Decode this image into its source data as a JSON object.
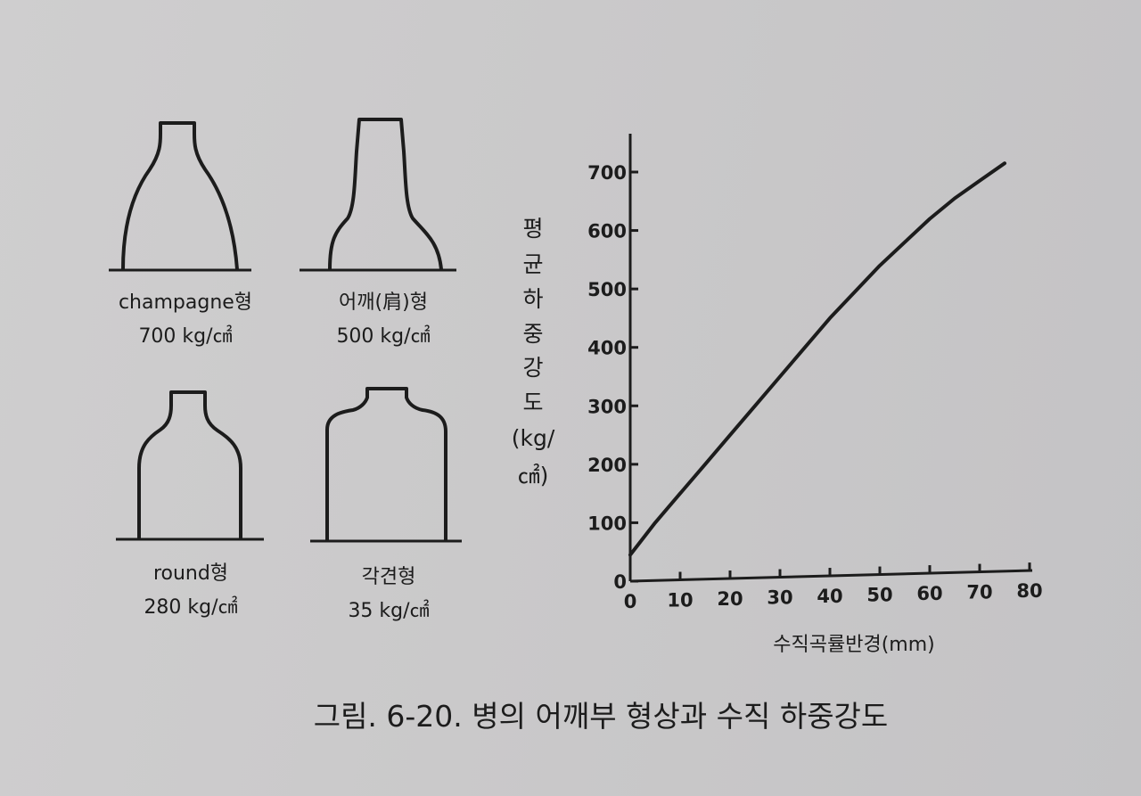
{
  "bottles": [
    {
      "name": "champagne형",
      "strength": "700 kg/㎠"
    },
    {
      "name": "어깨(肩)형",
      "strength": "500 kg/㎠"
    },
    {
      "name": "round형",
      "strength": "280 kg/㎠"
    },
    {
      "name": "각견형",
      "strength": "35 kg/㎠"
    }
  ],
  "chart_data": {
    "type": "line",
    "ylabel_chars": [
      "평",
      "균",
      "하",
      "중",
      "강",
      "도",
      "(kg/",
      "㎠)"
    ],
    "xlabel": "수직곡률반경(mm)",
    "xlim": [
      0,
      80
    ],
    "ylim": [
      0,
      700
    ],
    "xticks": [
      0,
      10,
      20,
      30,
      40,
      50,
      60,
      70,
      80
    ],
    "yticks": [
      0,
      100,
      200,
      300,
      400,
      500,
      600,
      700
    ],
    "series": [
      {
        "x": [
          0,
          5,
          10,
          15,
          20,
          25,
          30,
          35,
          40,
          45,
          50,
          55,
          60,
          65,
          70,
          75
        ],
        "y": [
          45,
          100,
          150,
          200,
          250,
          300,
          350,
          400,
          450,
          495,
          540,
          580,
          620,
          655,
          685,
          715
        ]
      }
    ]
  },
  "caption": "그림. 6-20. 병의 어깨부 형상과 수직 하중강도"
}
